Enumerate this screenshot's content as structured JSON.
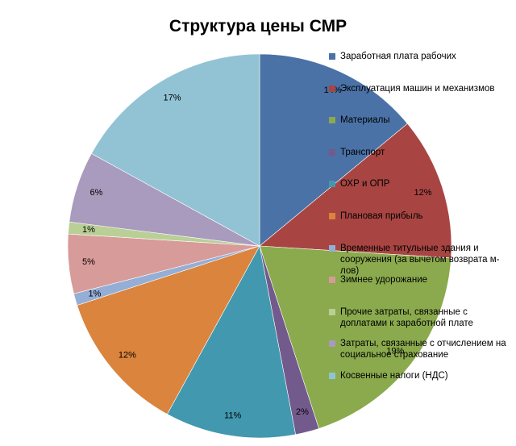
{
  "chart_data": {
    "type": "pie",
    "title": "Структура цены СМР",
    "legend_position": "right",
    "slices": [
      {
        "label": "Заработная плата рабочих",
        "value": 14,
        "display": "14%",
        "color": "#4a72a6"
      },
      {
        "label": "Эксплуатация машин и механизмов",
        "value": 12,
        "display": "12%",
        "color": "#a84542"
      },
      {
        "label": "Материалы",
        "value": 19,
        "display": "19%",
        "color": "#8aaa4d"
      },
      {
        "label": "Транспорт",
        "value": 2,
        "display": "2%",
        "color": "#735a8c"
      },
      {
        "label": "ОХР и ОПР",
        "value": 11,
        "display": "11%",
        "color": "#4298ae"
      },
      {
        "label": "Плановая прибыль",
        "value": 12,
        "display": "12%",
        "color": "#db843d"
      },
      {
        "label": "Временные титульные здания и сооружения (за вычетом возврата м-лов)",
        "value": 1,
        "display": "1%",
        "color": "#95aed6"
      },
      {
        "label": "Зимнее удорожание",
        "value": 5,
        "display": "5%",
        "color": "#d79b9a"
      },
      {
        "label": "Прочие затраты, связанные с доплатами к заработной плате",
        "value": 1,
        "display": "1%",
        "color": "#b9cf96"
      },
      {
        "label": "Затраты, связанные с отчислением на социальное страхование",
        "value": 6,
        "display": "6%",
        "color": "#a99bbd"
      },
      {
        "label": "Косвенные налоги (НДС)",
        "value": 17,
        "display": "17%",
        "color": "#92c3d4"
      }
    ]
  }
}
